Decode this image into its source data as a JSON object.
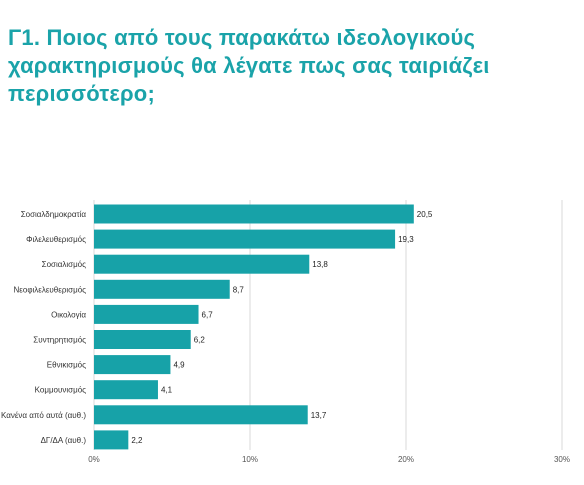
{
  "title": "Γ1. Ποιος από τους παρακάτω ιδεολογικούς χαρακτηρισμούς θα λέγατε πως σας ταιριάζει περισσότερο;",
  "chart_data": {
    "type": "bar",
    "orientation": "horizontal",
    "categories": [
      "Σοσιαλδημοκρατία",
      "Φιλελευθερισμός",
      "Σοσιαλισμός",
      "Νεοφιλελευθερισμός",
      "Οικολογία",
      "Συντηρητισμός",
      "Εθνικισμός",
      "Κομμουνισμός",
      "Κανένα από αυτά (αυθ.)",
      "ΔΓ/ΔΑ (αυθ.)"
    ],
    "values": [
      20.5,
      19.3,
      13.8,
      8.7,
      6.7,
      6.2,
      4.9,
      4.1,
      13.7,
      2.2
    ],
    "value_labels": [
      "20,5",
      "19,3",
      "13,8",
      "8,7",
      "6,7",
      "6,2",
      "4,9",
      "4,1",
      "13,7",
      "2,2"
    ],
    "xlim": [
      0,
      30
    ],
    "x_ticks": [
      0,
      10,
      20,
      30
    ],
    "x_tick_labels": [
      "0%",
      "10%",
      "20%",
      "30%"
    ],
    "grid": true,
    "colors": {
      "bar": "#17a2a8",
      "grid": "#d9d9d9",
      "title": "#1aa3a9"
    }
  }
}
